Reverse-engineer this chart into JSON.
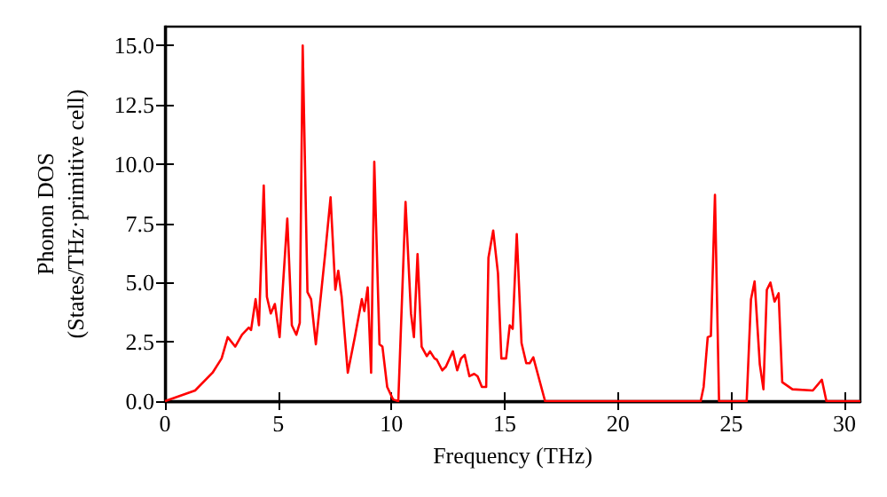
{
  "chart_data": {
    "type": "line",
    "xlabel": "Frequency (THz)",
    "ylabel": "Phonon DOS\n(States/THz·primitive cell)",
    "xlim": [
      0,
      30.7
    ],
    "xticks": [
      0,
      5,
      10,
      15,
      20,
      25,
      30
    ],
    "ylim": [
      0,
      15.8
    ],
    "yticks": [
      {
        "value": 0,
        "label": "0.0"
      },
      {
        "value": 2.5,
        "label": "2.5"
      },
      {
        "value": 5,
        "label": "5.0"
      },
      {
        "value": 7.5,
        "label": "7.5"
      },
      {
        "value": 10,
        "label": "10.0"
      },
      {
        "value": 12.5,
        "label": "12.5"
      },
      {
        "value": 15,
        "label": "15.0"
      }
    ],
    "grid": false,
    "marker": "none",
    "line_style": "solid",
    "series": [
      {
        "color": "#ff0000",
        "x": [
          0,
          1.33,
          2.1,
          2.5,
          2.77,
          3.1,
          3.4,
          3.7,
          3.8,
          4.0,
          4.15,
          4.36,
          4.5,
          4.67,
          4.85,
          5.06,
          5.4,
          5.6,
          5.8,
          5.95,
          6.08,
          6.29,
          6.45,
          6.66,
          7.07,
          7.31,
          7.52,
          7.65,
          7.8,
          8.07,
          8.38,
          8.69,
          8.8,
          8.95,
          9.1,
          9.24,
          9.47,
          9.6,
          9.81,
          10.07,
          10.3,
          10.62,
          10.86,
          10.99,
          11.15,
          11.33,
          11.56,
          11.7,
          11.9,
          12.0,
          12.24,
          12.4,
          12.71,
          12.9,
          13.07,
          13.23,
          13.44,
          13.65,
          13.8,
          13.99,
          14.18,
          14.28,
          14.49,
          14.7,
          14.85,
          15.06,
          15.22,
          15.35,
          15.53,
          15.74,
          15.95,
          16.1,
          16.26,
          16.78,
          23.65,
          23.78,
          23.96,
          24.1,
          24.28,
          24.46,
          25.68,
          25.87,
          26.03,
          26.26,
          26.42,
          26.57,
          26.73,
          26.91,
          27.09,
          27.25,
          27.7,
          28.6,
          29.0,
          29.2,
          30.7
        ],
        "values": [
          0,
          0.45,
          1.2,
          1.8,
          2.7,
          2.3,
          2.8,
          3.1,
          3.0,
          4.3,
          3.2,
          9.1,
          4.4,
          3.7,
          4.1,
          2.7,
          7.7,
          3.2,
          2.8,
          3.3,
          15.0,
          4.6,
          4.3,
          2.4,
          6.2,
          8.6,
          4.7,
          5.5,
          4.4,
          1.2,
          2.7,
          4.3,
          3.8,
          4.8,
          1.2,
          10.1,
          2.4,
          2.3,
          0.6,
          0.07,
          0,
          8.4,
          3.7,
          2.7,
          6.2,
          2.3,
          1.9,
          2.1,
          1.8,
          1.75,
          1.3,
          1.45,
          2.1,
          1.3,
          1.8,
          1.95,
          1.05,
          1.15,
          1.05,
          0.6,
          0.6,
          6.05,
          7.2,
          5.4,
          1.8,
          1.8,
          3.2,
          3.05,
          7.05,
          2.45,
          1.6,
          1.6,
          1.85,
          0,
          0,
          0.6,
          2.7,
          2.75,
          8.7,
          0,
          0,
          4.3,
          5.05,
          1.55,
          0.5,
          4.7,
          5.0,
          4.2,
          4.55,
          0.8,
          0.5,
          0.45,
          0.9,
          0,
          0
        ]
      }
    ]
  }
}
